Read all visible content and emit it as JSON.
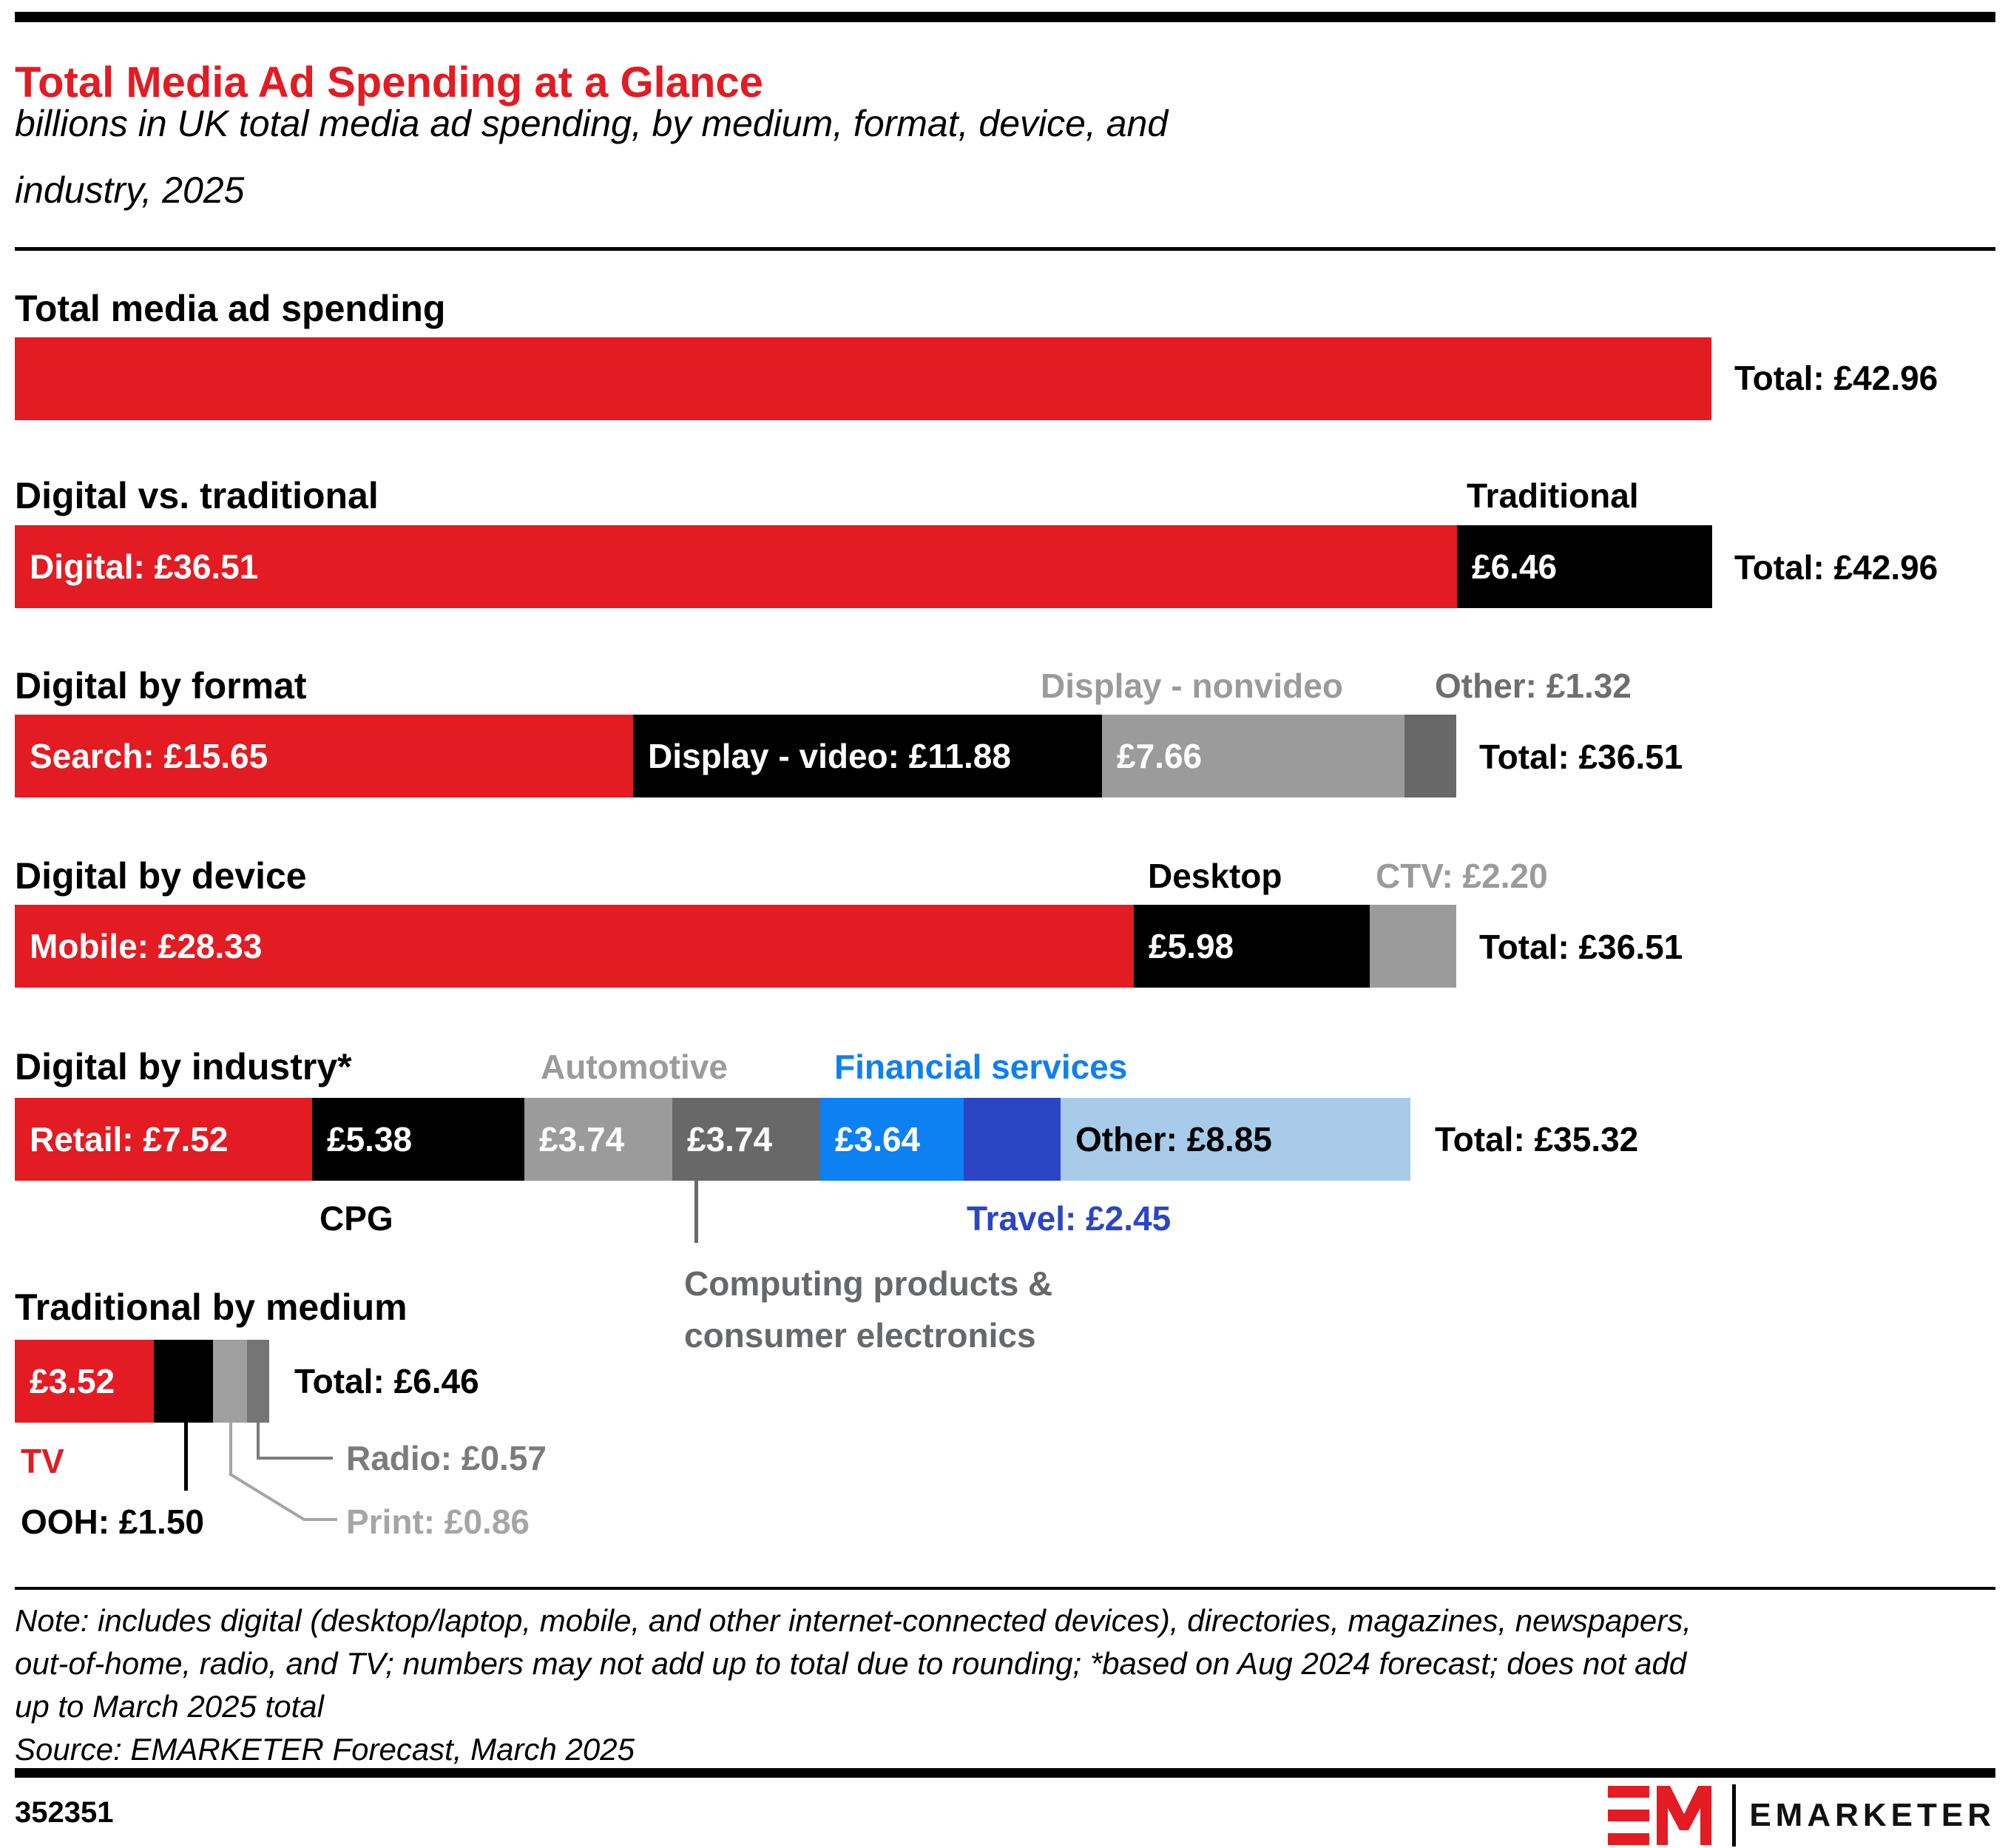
{
  "header": {
    "title": "Total Media Ad Spending at a Glance",
    "subtitle_line1": "billions in UK total media ad spending, by medium, format, device, and",
    "subtitle_line2": "industry, 2025"
  },
  "colors": {
    "red": "#e31b22",
    "black": "#000000",
    "white": "#ffffff",
    "gray": "#9b9b9b",
    "dark_gray": "#686868",
    "label_dark_gray": "#6e6e6e",
    "text_gray": "#67686a",
    "radio_gray": "#757575",
    "radio_label_gray": "#7b7b7b",
    "print_gray": "#9f9f9f",
    "print_label_gray": "#a5a5a5",
    "blue": "#0d80f2",
    "dark_blue": "#2b46c4",
    "light_blue": "#a7cbe9"
  },
  "chart_data": {
    "type": "bar",
    "subtype": "stacked-horizontal-small-multiples",
    "unit": "GBP billions",
    "title": "Total Media Ad Spending at a Glance",
    "subtitle": "billions in UK total media ad spending, by medium, format, device, and industry, 2025",
    "sections": [
      {
        "id": "total",
        "heading": "Total media ad spending",
        "total": 42.96,
        "total_label": "Total: £42.96",
        "above_labels": [],
        "segments": [
          {
            "name": "Total media ad spending",
            "value": 42.96,
            "color": "red",
            "label": "",
            "label_color": "white"
          }
        ],
        "callouts": []
      },
      {
        "id": "digital-vs-traditional",
        "heading": "Digital vs. traditional",
        "total": 42.96,
        "total_label": "Total: £42.96",
        "above_labels": [
          {
            "text": "Traditional"
          }
        ],
        "segments": [
          {
            "name": "Digital",
            "value": 36.51,
            "color": "red",
            "label": "Digital: £36.51",
            "label_color": "white"
          },
          {
            "name": "Traditional",
            "value": 6.46,
            "color": "black",
            "label": "£6.46",
            "label_color": "white"
          }
        ],
        "callouts": []
      },
      {
        "id": "digital-by-format",
        "heading": "Digital by format",
        "total": 36.51,
        "total_label": "Total: £36.51",
        "above_labels": [
          {
            "text": "Display - nonvideo"
          },
          {
            "text": "Other: £1.32"
          }
        ],
        "segments": [
          {
            "name": "Search",
            "value": 15.65,
            "color": "red",
            "label": "Search: £15.65",
            "label_color": "white"
          },
          {
            "name": "Display - video",
            "value": 11.88,
            "color": "black",
            "label": "Display - video: £11.88",
            "label_color": "white"
          },
          {
            "name": "Display - nonvideo",
            "value": 7.66,
            "color": "gray",
            "label": "£7.66",
            "label_color": "white"
          },
          {
            "name": "Other",
            "value": 1.32,
            "color": "dark_gray",
            "label": "",
            "label_color": "white"
          }
        ],
        "callouts": []
      },
      {
        "id": "digital-by-device",
        "heading": "Digital by device",
        "total": 36.51,
        "total_label": "Total: £36.51",
        "above_labels": [
          {
            "text": "Desktop"
          },
          {
            "text": "CTV: £2.20"
          }
        ],
        "segments": [
          {
            "name": "Mobile",
            "value": 28.33,
            "color": "red",
            "label": "Mobile: £28.33",
            "label_color": "white"
          },
          {
            "name": "Desktop",
            "value": 5.98,
            "color": "black",
            "label": "£5.98",
            "label_color": "white"
          },
          {
            "name": "CTV",
            "value": 2.2,
            "color": "gray",
            "label": "",
            "label_color": "white"
          }
        ],
        "callouts": []
      },
      {
        "id": "digital-by-industry",
        "heading": "Digital by industry*",
        "total": 35.32,
        "total_label": "Total: £35.32",
        "above_labels": [
          {
            "text": "Automotive"
          },
          {
            "text": "Financial services"
          }
        ],
        "segments": [
          {
            "name": "Retail",
            "value": 7.52,
            "color": "red",
            "label": "Retail: £7.52",
            "label_color": "white"
          },
          {
            "name": "CPG",
            "value": 5.38,
            "color": "black",
            "label": "£5.38",
            "label_color": "white"
          },
          {
            "name": "Automotive",
            "value": 3.74,
            "color": "gray",
            "label": "£3.74",
            "label_color": "white"
          },
          {
            "name": "Computing products & consumer electronics",
            "value": 3.74,
            "color": "dark_gray",
            "label": "£3.74",
            "label_color": "white"
          },
          {
            "name": "Financial services",
            "value": 3.64,
            "color": "blue",
            "label": "£3.64",
            "label_color": "white"
          },
          {
            "name": "Travel",
            "value": 2.45,
            "color": "dark_blue",
            "label": "",
            "label_color": "white"
          },
          {
            "name": "Other",
            "value": 8.85,
            "color": "light_blue",
            "label": "Other: £8.85",
            "label_color": "black"
          }
        ],
        "callouts": [
          {
            "text": "CPG"
          },
          {
            "text": "Travel: £2.45"
          },
          {
            "text": "Computing products &"
          },
          {
            "text": "consumer electronics"
          }
        ]
      },
      {
        "id": "traditional-by-medium",
        "heading": "Traditional by medium",
        "total": 6.46,
        "total_label": "Total: £6.46",
        "above_labels": [],
        "segments": [
          {
            "name": "TV",
            "value": 3.52,
            "color": "red",
            "label": "£3.52",
            "label_color": "white"
          },
          {
            "name": "OOH",
            "value": 1.5,
            "color": "black",
            "label": "",
            "label_color": "white"
          },
          {
            "name": "Print",
            "value": 0.86,
            "color": "print_gray",
            "label": "",
            "label_color": "white"
          },
          {
            "name": "Radio",
            "value": 0.57,
            "color": "radio_gray",
            "label": "",
            "label_color": "white"
          }
        ],
        "callouts": [
          {
            "text": "TV"
          },
          {
            "text": "OOH: £1.50"
          },
          {
            "text": "Radio: £0.57"
          },
          {
            "text": "Print: £0.86"
          }
        ]
      }
    ]
  },
  "footer": {
    "note_line1": "Note: includes digital (desktop/laptop, mobile, and other internet-connected devices), directories, magazines, newspapers,",
    "note_line2": "out-of-home, radio, and TV; numbers may not add up to total due to rounding; *based on Aug 2024 forecast; does not add",
    "note_line3": "up to March 2025 total",
    "source": "Source: EMARKETER Forecast, March 2025",
    "chart_id": "352351",
    "brand": "EMARKETER"
  }
}
